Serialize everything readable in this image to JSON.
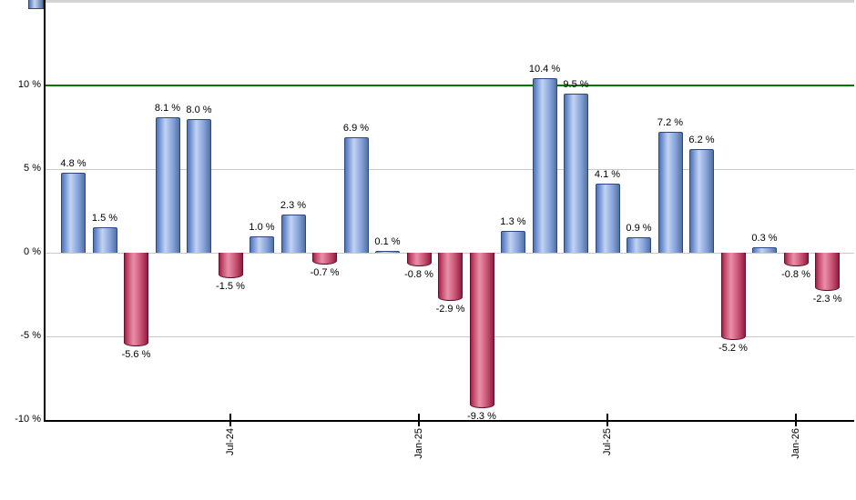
{
  "chart_data": {
    "type": "bar",
    "title": "",
    "xlabel": "",
    "ylabel": "",
    "values": [
      4.8,
      1.5,
      -5.6,
      8.1,
      8.0,
      -1.5,
      1.0,
      2.3,
      -0.7,
      6.9,
      0.1,
      -0.8,
      -2.9,
      -9.3,
      1.3,
      10.4,
      9.5,
      4.1,
      0.9,
      7.2,
      6.2,
      -5.2,
      0.3,
      -0.8,
      -2.3
    ],
    "bar_labels": [
      "4.8 %",
      "1.5 %",
      "-5.6 %",
      "8.1 %",
      "8.0 %",
      "-1.5 %",
      "1.0 %",
      "2.3 %",
      "-0.7 %",
      "6.9 %",
      "0.1 %",
      "-0.8 %",
      "-2.9 %",
      "-9.3 %",
      "1.3 %",
      "10.4 %",
      "9.5 %",
      "4.1 %",
      "0.9 %",
      "7.2 %",
      "6.2 %",
      "-5.2 %",
      "0.3 %",
      "-0.8 %",
      "-2.3 %"
    ],
    "x_ticks": [
      {
        "label": "Jul-24",
        "bar_index": 5
      },
      {
        "label": "Jan-25",
        "bar_index": 11
      },
      {
        "label": "Jul-25",
        "bar_index": 17
      },
      {
        "label": "Jan-26",
        "bar_index": 23
      }
    ],
    "y_ticks": [
      {
        "label": "10 %",
        "value": 10
      },
      {
        "label": "5 %",
        "value": 5
      },
      {
        "label": "0 %",
        "value": 0
      },
      {
        "label": "-5 %",
        "value": -5
      },
      {
        "label": "-10 %",
        "value": -10
      }
    ],
    "ylim": [
      -10,
      15
    ],
    "grid": true,
    "legend": "none",
    "reference_line": {
      "value": 10,
      "color": "#067806"
    },
    "colors": {
      "positive_light": "#c3d4f2",
      "positive_dark": "#5074b5",
      "positive_border": "#2c4a7c",
      "negative_light": "#e890a8",
      "negative_dark": "#a22248",
      "negative_border": "#64112d",
      "gridline": "#c9c9c9",
      "axis": "#000000",
      "background": "#ffffff"
    }
  }
}
